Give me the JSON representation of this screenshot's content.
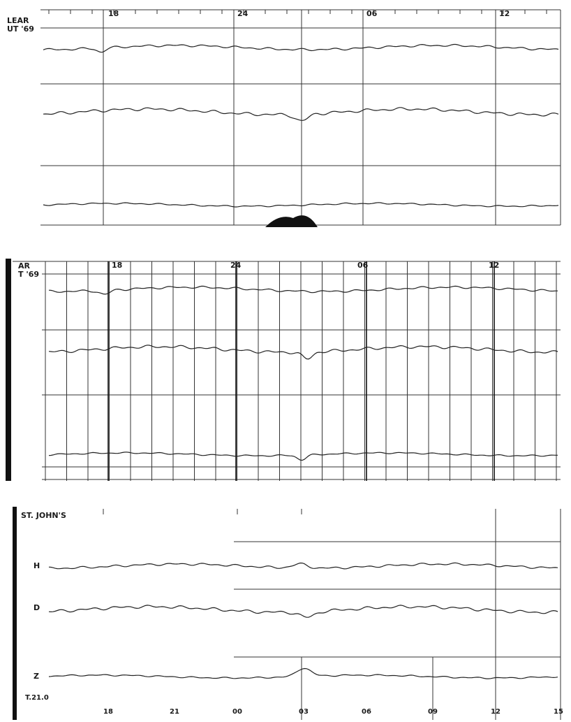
{
  "panels": [
    {
      "station": "LEAR",
      "date": "UT '69",
      "hours": [
        "18",
        "24",
        "06",
        "12"
      ]
    },
    {
      "station": "AR",
      "date": "T '69",
      "hours": [
        "18",
        "24",
        "06",
        "12"
      ]
    },
    {
      "station": "ST. JOHN'S",
      "components": [
        "H",
        "D",
        "Z"
      ],
      "footer": "T.21.0",
      "hours": [
        "18",
        "21",
        "00",
        "03",
        "06",
        "09",
        "12",
        "15"
      ]
    }
  ]
}
